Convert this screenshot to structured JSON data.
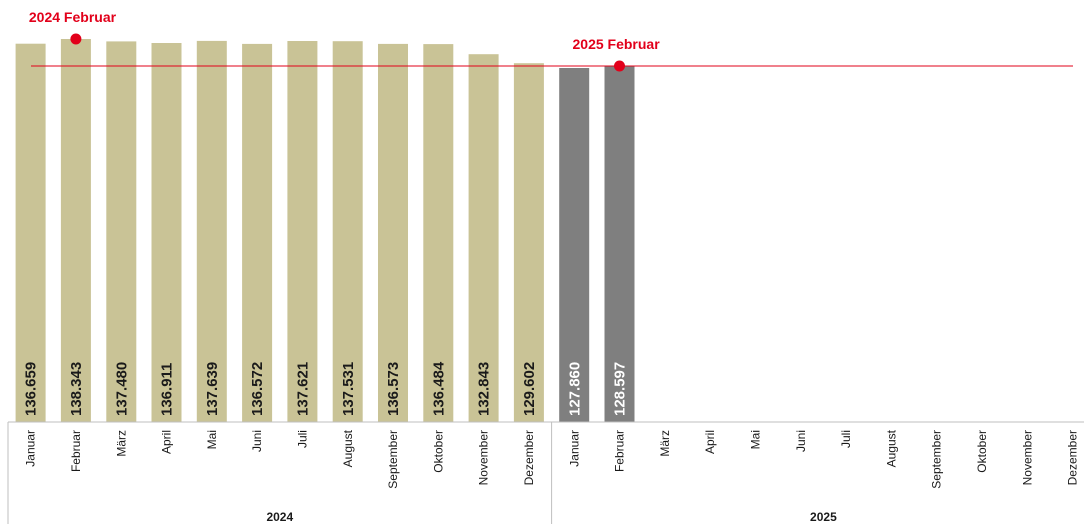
{
  "chart_data": {
    "type": "bar",
    "years": [
      {
        "year": "2024",
        "months": [
          "Januar",
          "Februar",
          "März",
          "April",
          "Mai",
          "Juni",
          "Juli",
          "August",
          "September",
          "Oktober",
          "November",
          "Dezember"
        ],
        "values": [
          136659,
          138343,
          137480,
          136911,
          137639,
          136572,
          137621,
          137531,
          136573,
          136484,
          132843,
          129602
        ],
        "labels": [
          "136.659",
          "138.343",
          "137.480",
          "136.911",
          "137.639",
          "136.572",
          "137.621",
          "137.531",
          "136.573",
          "136.484",
          "132.843",
          "129.602"
        ]
      },
      {
        "year": "2025",
        "months": [
          "Januar",
          "Februar",
          "März",
          "April",
          "Mai",
          "Juni",
          "Juli",
          "August",
          "September",
          "Oktober",
          "November",
          "Dezember"
        ],
        "values": [
          127860,
          128597,
          null,
          null,
          null,
          null,
          null,
          null,
          null,
          null,
          null,
          null
        ],
        "labels": [
          "127.860",
          "128.597",
          "",
          "",
          "",
          "",
          "",
          "",
          "",
          "",
          "",
          ""
        ]
      }
    ],
    "annotations": [
      {
        "label": "2024 Februar",
        "year_index": 0,
        "month_index": 1,
        "value": 138343
      },
      {
        "label": "2025 Februar",
        "year_index": 1,
        "month_index": 1,
        "value": 128597
      }
    ],
    "reference_line_value": 128597,
    "colors": {
      "bar_2024": "#c9c396",
      "bar_2025": "#7f7f7f",
      "accent": "#e2001a",
      "label_2024": "#1a1a1a",
      "label_2025": "#ffffff",
      "axis": "#bfbfbf"
    }
  }
}
